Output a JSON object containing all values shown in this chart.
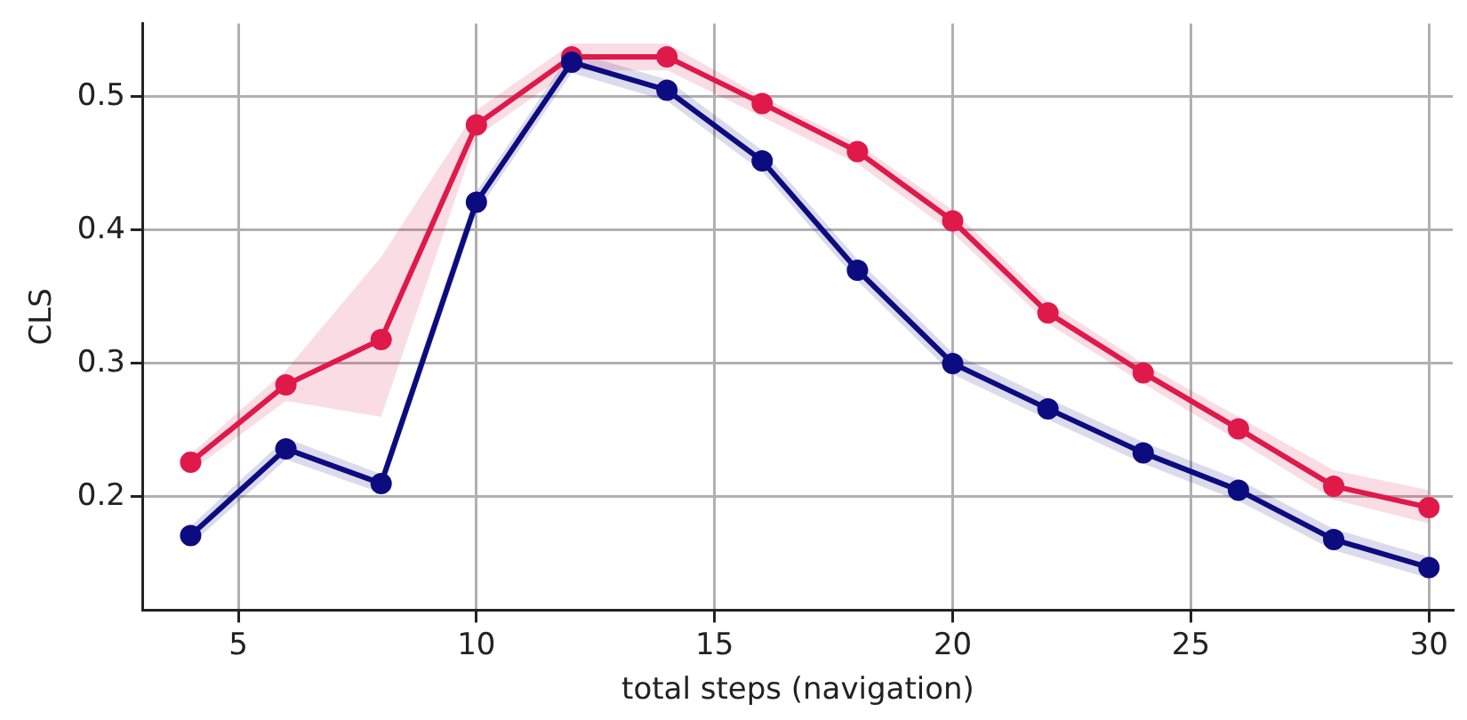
{
  "chart_data": {
    "type": "line",
    "xlabel": "total steps (navigation)",
    "ylabel": "CLS",
    "x": [
      4,
      6,
      8,
      10,
      12,
      14,
      16,
      18,
      20,
      22,
      24,
      26,
      28,
      30
    ],
    "series": [
      {
        "color": "#e0194a",
        "values": [
          0.226,
          0.284,
          0.318,
          0.479,
          0.53,
          0.53,
          0.495,
          0.459,
          0.407,
          0.338,
          0.293,
          0.251,
          0.208,
          0.192
        ],
        "lower": [
          0.219,
          0.272,
          0.26,
          0.47,
          0.52,
          0.52,
          0.485,
          0.45,
          0.398,
          0.33,
          0.285,
          0.242,
          0.198,
          0.18
        ],
        "upper": [
          0.232,
          0.295,
          0.38,
          0.49,
          0.54,
          0.54,
          0.5,
          0.465,
          0.415,
          0.346,
          0.3,
          0.26,
          0.22,
          0.205
        ]
      },
      {
        "color": "#0c0c80",
        "values": [
          0.171,
          0.236,
          0.21,
          0.421,
          0.526,
          0.505,
          0.452,
          0.37,
          0.3,
          0.266,
          0.233,
          0.205,
          0.168,
          0.147
        ],
        "lower": [
          0.164,
          0.228,
          0.203,
          0.413,
          0.518,
          0.497,
          0.444,
          0.362,
          0.292,
          0.258,
          0.225,
          0.197,
          0.16,
          0.139
        ],
        "upper": [
          0.178,
          0.244,
          0.217,
          0.429,
          0.534,
          0.513,
          0.46,
          0.378,
          0.308,
          0.274,
          0.241,
          0.213,
          0.176,
          0.155
        ]
      }
    ],
    "xlim": [
      3,
      30.5
    ],
    "ylim": [
      0.115,
      0.555
    ],
    "xticks": [
      5,
      10,
      15,
      20,
      25,
      30
    ],
    "yticks": [
      0.2,
      0.3,
      0.4,
      0.5
    ],
    "grid": true,
    "legend": false,
    "marker": "circle",
    "line_style": "solid"
  }
}
